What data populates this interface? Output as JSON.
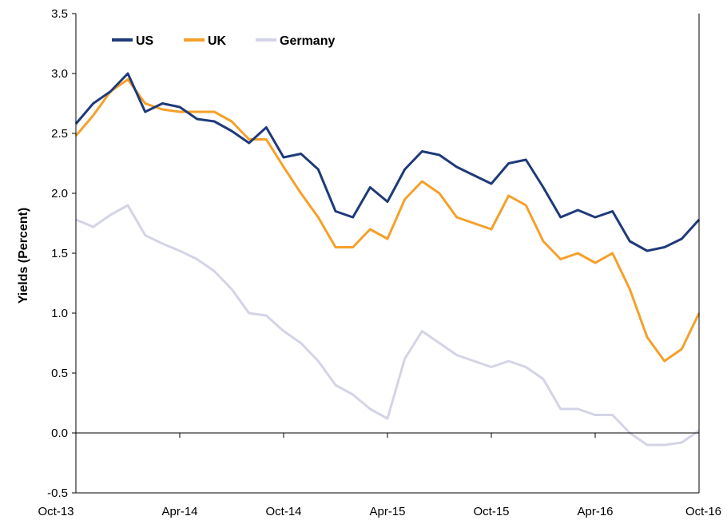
{
  "chart_data": {
    "type": "line",
    "title": "",
    "xlabel": "",
    "ylabel": "Yields (Percent)",
    "x_tick_labels": [
      "Oct-13",
      "Apr-14",
      "Oct-14",
      "Apr-15",
      "Oct-15",
      "Apr-16",
      "Oct-16"
    ],
    "x_range": [
      "2013-10",
      "2016-10"
    ],
    "ylim": [
      -0.5,
      3.5
    ],
    "y_ticks": [
      -0.5,
      0.0,
      0.5,
      1.0,
      1.5,
      2.0,
      2.5,
      3.0,
      3.5
    ],
    "y_tick_labels": [
      "-0.5",
      "0.0",
      "0.5",
      "1.0",
      "1.5",
      "2.0",
      "2.5",
      "3.0",
      "3.5"
    ],
    "grid": false,
    "legend_position": "top-left",
    "x": [
      "2013-10",
      "2013-11",
      "2013-12",
      "2014-01",
      "2014-02",
      "2014-03",
      "2014-04",
      "2014-05",
      "2014-06",
      "2014-07",
      "2014-08",
      "2014-09",
      "2014-10",
      "2014-11",
      "2014-12",
      "2015-01",
      "2015-02",
      "2015-03",
      "2015-04",
      "2015-05",
      "2015-06",
      "2015-07",
      "2015-08",
      "2015-09",
      "2015-10",
      "2015-11",
      "2015-12",
      "2016-01",
      "2016-02",
      "2016-03",
      "2016-04",
      "2016-05",
      "2016-06",
      "2016-07",
      "2016-08",
      "2016-09",
      "2016-10"
    ],
    "series": [
      {
        "name": "US",
        "color": "#1f3a7a",
        "values": [
          2.58,
          2.75,
          2.85,
          3.0,
          2.68,
          2.75,
          2.72,
          2.62,
          2.6,
          2.52,
          2.42,
          2.55,
          2.3,
          2.33,
          2.2,
          1.85,
          1.8,
          2.05,
          1.93,
          2.2,
          2.35,
          2.32,
          2.22,
          2.15,
          2.08,
          2.25,
          2.28,
          2.05,
          1.8,
          1.86,
          1.8,
          1.85,
          1.6,
          1.52,
          1.55,
          1.62,
          1.78
        ]
      },
      {
        "name": "UK",
        "color": "#f5a02a",
        "values": [
          2.48,
          2.65,
          2.85,
          2.95,
          2.75,
          2.7,
          2.68,
          2.68,
          2.68,
          2.6,
          2.45,
          2.45,
          2.22,
          2.0,
          1.8,
          1.55,
          1.55,
          1.7,
          1.62,
          1.95,
          2.1,
          2.0,
          1.8,
          1.75,
          1.7,
          1.98,
          1.9,
          1.6,
          1.45,
          1.5,
          1.42,
          1.5,
          1.2,
          0.8,
          0.6,
          0.7,
          1.0
        ]
      },
      {
        "name": "Germany",
        "color": "#d3d4e6",
        "values": [
          1.78,
          1.72,
          1.82,
          1.9,
          1.65,
          1.58,
          1.52,
          1.45,
          1.35,
          1.2,
          1.0,
          0.98,
          0.85,
          0.75,
          0.6,
          0.4,
          0.32,
          0.2,
          0.12,
          0.62,
          0.85,
          0.75,
          0.65,
          0.6,
          0.55,
          0.6,
          0.55,
          0.45,
          0.2,
          0.2,
          0.15,
          0.15,
          0.0,
          -0.1,
          -0.1,
          -0.08,
          0.02
        ]
      }
    ]
  }
}
